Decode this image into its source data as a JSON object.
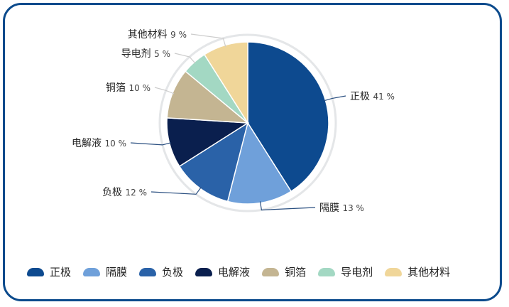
{
  "chart_data": {
    "type": "pie",
    "categories": [
      "正极",
      "隔膜",
      "负极",
      "电解液",
      "铜箔",
      "导电剂",
      "其他材料"
    ],
    "values": [
      41,
      13,
      12,
      10,
      10,
      5,
      9
    ],
    "unit": "%",
    "colors": [
      "#0d4a8f",
      "#6fa0da",
      "#2a62a8",
      "#0a1f4e",
      "#c4b592",
      "#a3d8c3",
      "#f0d699"
    ],
    "legend_position": "bottom",
    "start": "top",
    "direction": "clockwise"
  }
}
